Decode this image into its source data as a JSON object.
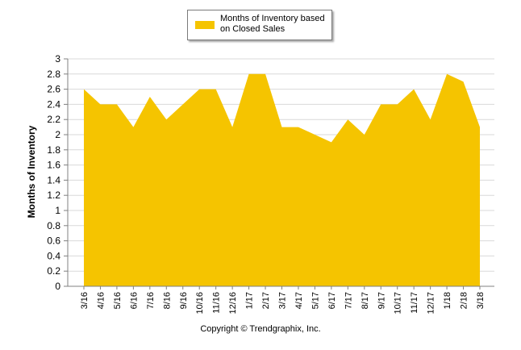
{
  "chart_data": {
    "type": "area",
    "title": "",
    "xlabel": "",
    "ylabel": "Months of Inventory",
    "ylim": [
      0,
      3
    ],
    "ytick_step": 0.2,
    "grid": true,
    "legend_position": "top-center",
    "categories": [
      "3/16",
      "4/16",
      "5/16",
      "6/16",
      "7/16",
      "8/16",
      "9/16",
      "10/16",
      "11/16",
      "12/16",
      "1/17",
      "2/17",
      "3/17",
      "4/17",
      "5/17",
      "6/17",
      "7/17",
      "8/17",
      "9/17",
      "10/17",
      "11/17",
      "12/17",
      "1/18",
      "2/18",
      "3/18"
    ],
    "series": [
      {
        "name": "Months of Inventory based on Closed Sales",
        "color": "#f5c400",
        "values": [
          2.6,
          2.4,
          2.4,
          2.1,
          2.5,
          2.2,
          2.4,
          2.6,
          2.6,
          2.1,
          2.8,
          2.8,
          2.1,
          2.1,
          2.0,
          1.9,
          2.2,
          2.0,
          2.4,
          2.4,
          2.6,
          2.2,
          2.8,
          2.7,
          2.1
        ]
      }
    ]
  },
  "legend": {
    "label_line1": "Months of Inventory based",
    "label_line2": "on Closed Sales"
  },
  "footer": {
    "copyright": "Copyright © Trendgraphix, Inc."
  },
  "colors": {
    "area": "#f5c400",
    "grid": "#d9d9d9",
    "axis": "#808080"
  }
}
